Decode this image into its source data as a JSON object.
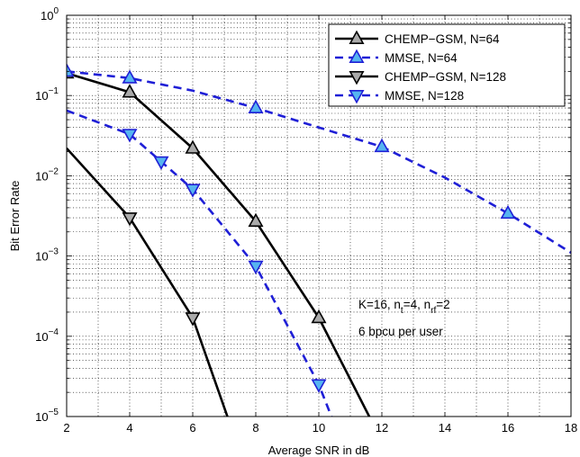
{
  "chart_data": {
    "type": "line",
    "title": "",
    "xlabel": "Average SNR in dB",
    "ylabel": "Bit Error Rate",
    "xlim": [
      2,
      18
    ],
    "ylim": [
      1e-05,
      1
    ],
    "yscale": "log",
    "grid": true,
    "legend_position": "top-right",
    "x_ticks": [
      {
        "value": 2,
        "label": "2"
      },
      {
        "value": 4,
        "label": "4"
      },
      {
        "value": 6,
        "label": "6"
      },
      {
        "value": 8,
        "label": "8"
      },
      {
        "value": 10,
        "label": "10"
      },
      {
        "value": 12,
        "label": "12"
      },
      {
        "value": 14,
        "label": "14"
      },
      {
        "value": 16,
        "label": "16"
      },
      {
        "value": 18,
        "label": "18"
      }
    ],
    "y_ticks": [
      {
        "value": 1,
        "base": "10",
        "exp": "0"
      },
      {
        "value": 0.1,
        "base": "10",
        "exp": "−1"
      },
      {
        "value": 0.01,
        "base": "10",
        "exp": "−2"
      },
      {
        "value": 0.001,
        "base": "10",
        "exp": "−3"
      },
      {
        "value": 0.0001,
        "base": "10",
        "exp": "−4"
      },
      {
        "value": 1e-05,
        "base": "10",
        "exp": "−5"
      }
    ],
    "series": [
      {
        "name": "CHEMP−GSM, N=64",
        "color": "#000000",
        "dash": "solid",
        "marker": "triangle-up",
        "marker_fill": "#aaaaaa",
        "points": [
          [
            2,
            0.19
          ],
          [
            4,
            0.11
          ],
          [
            6,
            0.022
          ],
          [
            8,
            0.0027
          ],
          [
            10,
            0.00017
          ],
          [
            11.6,
            1e-05
          ]
        ],
        "marker_x": [
          2,
          4,
          6,
          8,
          10
        ]
      },
      {
        "name": "MMSE, N=64",
        "color": "#1f1fd6",
        "dash": "dashed",
        "marker": "triangle-up",
        "marker_fill": "#56b4f0",
        "points": [
          [
            2,
            0.2
          ],
          [
            4,
            0.165
          ],
          [
            6,
            0.115
          ],
          [
            8,
            0.07
          ],
          [
            10,
            0.04
          ],
          [
            12,
            0.023
          ],
          [
            14,
            0.0095
          ],
          [
            16,
            0.0034
          ],
          [
            18,
            0.0011
          ]
        ],
        "marker_x": [
          2,
          4,
          8,
          12,
          16
        ]
      },
      {
        "name": "CHEMP−GSM, N=128",
        "color": "#000000",
        "dash": "solid",
        "marker": "triangle-down",
        "marker_fill": "#aaaaaa",
        "points": [
          [
            2,
            0.022
          ],
          [
            4,
            0.003
          ],
          [
            6,
            0.00017
          ],
          [
            7.1,
            1e-05
          ]
        ],
        "marker_x": [
          4,
          6
        ]
      },
      {
        "name": "MMSE, N=128",
        "color": "#1f1fd6",
        "dash": "dashed",
        "marker": "triangle-down",
        "marker_fill": "#56b4f0",
        "points": [
          [
            2,
            0.065
          ],
          [
            4,
            0.033
          ],
          [
            5,
            0.015
          ],
          [
            6,
            0.0068
          ],
          [
            8,
            0.00075
          ],
          [
            10,
            2.5e-05
          ],
          [
            10.4,
            1e-05
          ]
        ],
        "marker_x": [
          4,
          5,
          6,
          8,
          10
        ]
      }
    ],
    "annotations": {
      "line1": {
        "k": "K=16, n",
        "sub1": "t",
        "mid": "=4, n",
        "sub2": "rf",
        "end": "=2"
      },
      "line2": "6 bpcu per user"
    }
  }
}
